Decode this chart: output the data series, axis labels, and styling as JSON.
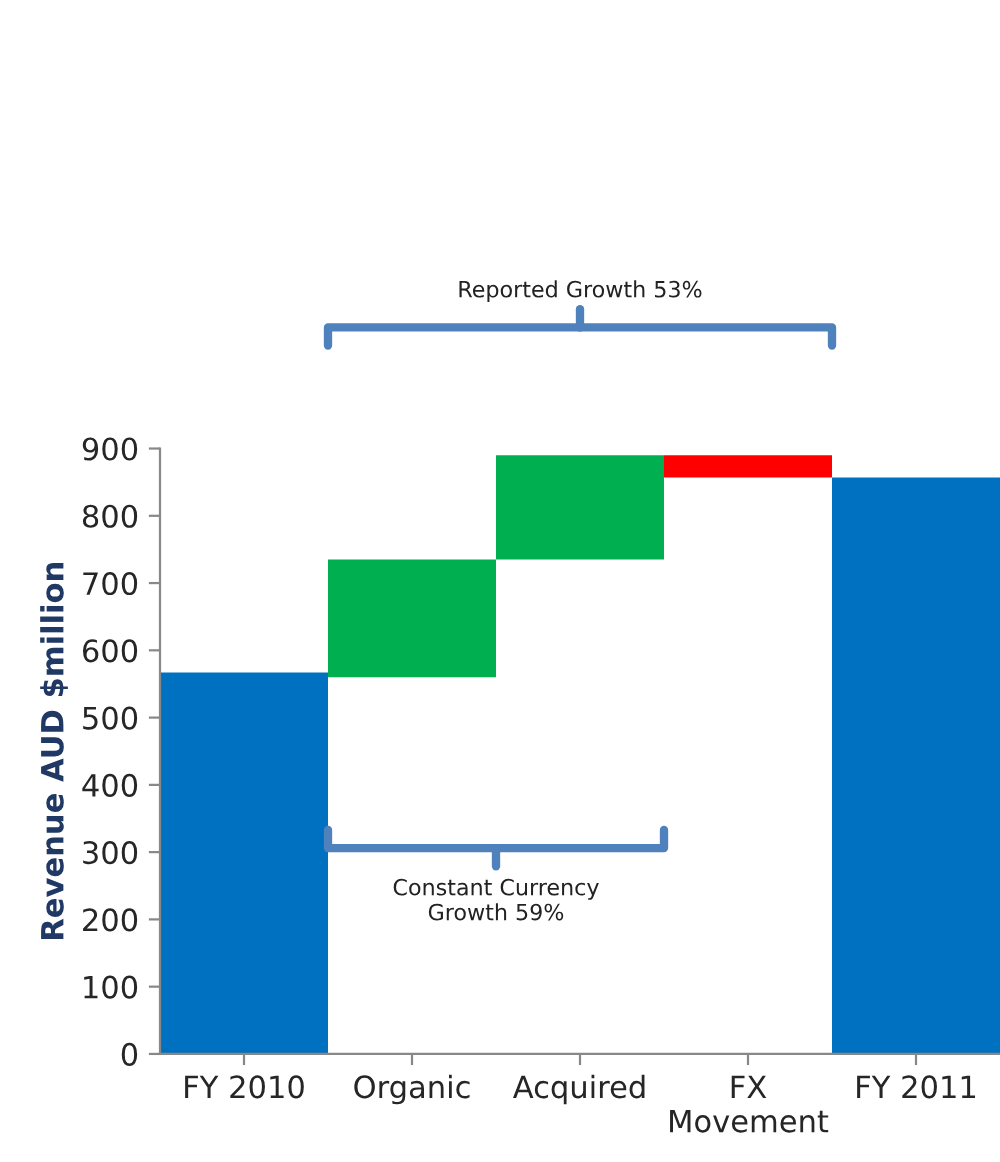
{
  "chart_data": {
    "type": "bar",
    "ylabel": "Revenue AUD $million",
    "categories": [
      "FY 2010",
      "Organic",
      "Acquired",
      "FX\nMovement",
      "FY 2011"
    ],
    "values": [
      567,
      175,
      155,
      -33,
      857
    ],
    "base": [
      0,
      560,
      735,
      890,
      0
    ],
    "colors": [
      "#0070c0",
      "#00b050",
      "#00b050",
      "#ff0000",
      "#0070c0"
    ],
    "ylim": [
      0,
      900
    ],
    "yticks": [
      0,
      100,
      200,
      300,
      400,
      500,
      600,
      700,
      800,
      900
    ],
    "grid": false,
    "legend": false,
    "annotations": [
      "Reported Growth 53%",
      "Constant Currency\nGrowth 59%"
    ]
  }
}
